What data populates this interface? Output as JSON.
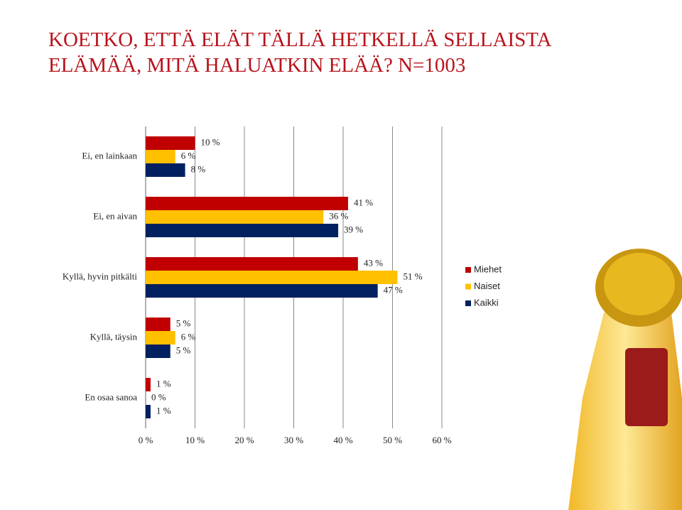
{
  "chart_data": {
    "type": "bar",
    "title": [
      "KOETKO, ETTÄ ELÄT TÄLLÄ HETKELLÄ SELLAISTA",
      "ELÄMÄÄ, MITÄ HALUATKIN ELÄÄ? N=1003"
    ],
    "orientation": "horizontal",
    "categories": [
      "Ei, en lainkaan",
      "Ei, en aivan",
      "Kyllä, hyvin pitkälti",
      "Kyllä, täysin",
      "En osaa sanoa"
    ],
    "series": [
      {
        "name": "Miehet",
        "color": "#c00000",
        "values": [
          10,
          41,
          43,
          5,
          1
        ],
        "value_labels": [
          "10 %",
          "41 %",
          "43 %",
          "5 %",
          "1 %"
        ]
      },
      {
        "name": "Naiset",
        "color": "#ffc000",
        "values": [
          6,
          36,
          51,
          6,
          0
        ],
        "value_labels": [
          "6 %",
          "36 %",
          "51 %",
          "6 %",
          "0 %"
        ]
      },
      {
        "name": "Kaikki",
        "color": "#002060",
        "values": [
          8,
          39,
          47,
          5,
          1
        ],
        "value_labels": [
          "8 %",
          "39 %",
          "47 %",
          "5 %",
          "1 %"
        ]
      }
    ],
    "xlim": [
      0,
      60
    ],
    "xticks": [
      {
        "value": 0,
        "label": "0 %"
      },
      {
        "value": 10,
        "label": "10 %"
      },
      {
        "value": 20,
        "label": "20 %"
      },
      {
        "value": 30,
        "label": "30 %"
      },
      {
        "value": 40,
        "label": "40 %"
      },
      {
        "value": 50,
        "label": "50 %"
      },
      {
        "value": 60,
        "label": "60 %"
      }
    ],
    "grid": true,
    "legend": "right"
  }
}
